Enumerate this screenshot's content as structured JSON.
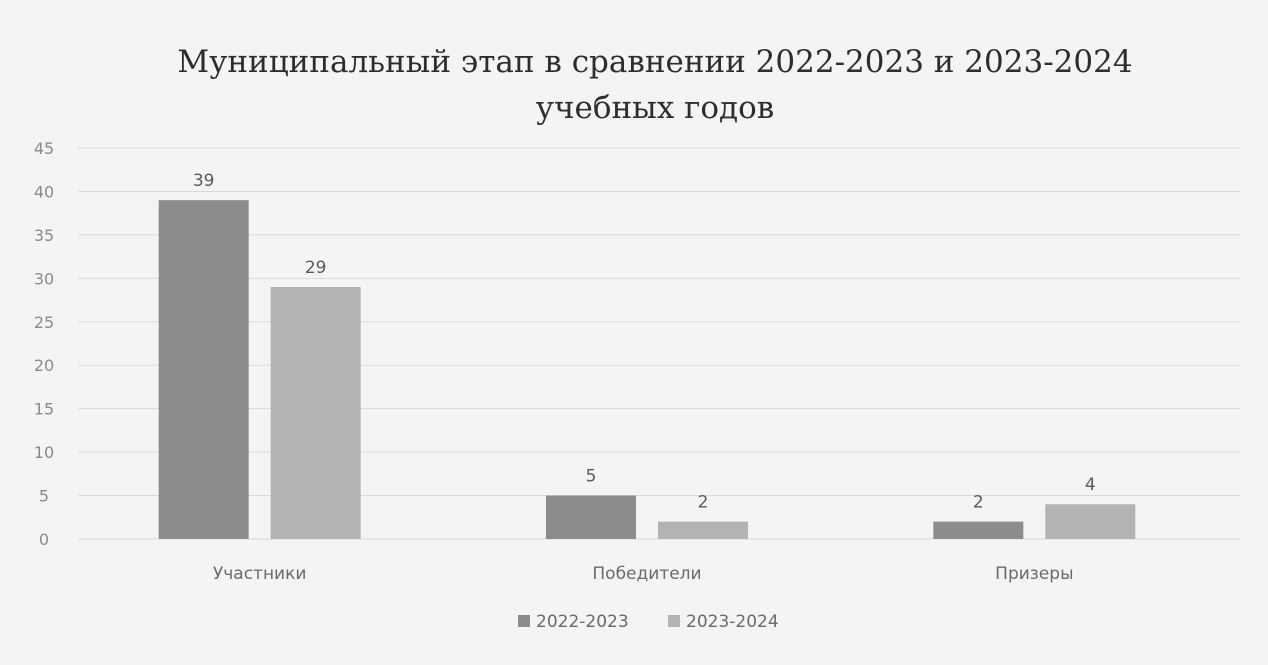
{
  "chart_data": {
    "type": "bar",
    "title_lines": [
      "Муниципальный этап в сравнении 2022-2023 и 2023-2024",
      "учебных годов"
    ],
    "categories": [
      "Участники",
      "Победители",
      "Призеры"
    ],
    "series": [
      {
        "name": "2022-2023",
        "values": [
          39,
          5,
          2
        ],
        "color": "#8c8c8c"
      },
      {
        "name": "2023-2024",
        "values": [
          29,
          2,
          4
        ],
        "color": "#b3b3b3"
      }
    ],
    "y_ticks": [
      "0",
      "5",
      "10",
      "15",
      "20",
      "25",
      "30",
      "35",
      "40",
      "45"
    ],
    "ylim": [
      0,
      45
    ],
    "grid": true,
    "legend_position": "bottom",
    "xlabel": "",
    "ylabel": ""
  }
}
